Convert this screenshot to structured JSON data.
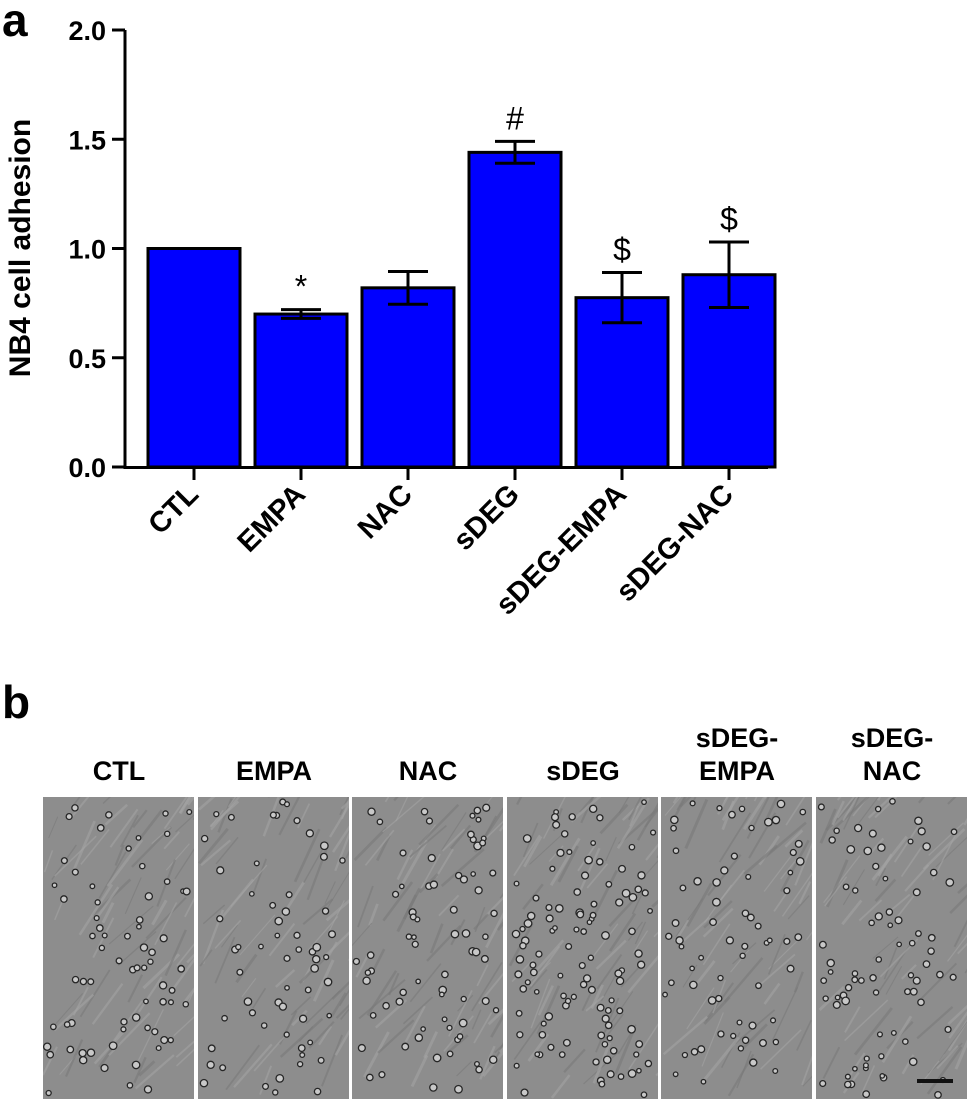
{
  "panel_a_letter": "a",
  "panel_b_letter": "b",
  "chart_data": {
    "type": "bar",
    "title": "",
    "xlabel": "",
    "ylabel": "NB4 cell adhesion",
    "categories": [
      "CTL",
      "EMPA",
      "NAC",
      "sDEG",
      "sDEG-EMPA",
      "sDEG-NAC"
    ],
    "values": [
      1.0,
      0.7,
      0.82,
      1.44,
      0.775,
      0.88
    ],
    "errors": [
      0,
      0.02,
      0.075,
      0.05,
      0.115,
      0.15
    ],
    "annotations": [
      "",
      "*",
      "",
      "#",
      "$",
      "$"
    ],
    "ylim": [
      0,
      2.0
    ],
    "yticks": [
      0.0,
      0.5,
      1.0,
      1.5,
      2.0
    ],
    "ytick_labels": [
      "0.0",
      "0.5",
      "1.0",
      "1.5",
      "2.0"
    ],
    "bar_color": "#0000ff",
    "edge_color": "#000000",
    "grid": false,
    "legend": "none"
  },
  "micrographs": [
    {
      "label_line1": "CTL",
      "label_line2": ""
    },
    {
      "label_line1": "EMPA",
      "label_line2": ""
    },
    {
      "label_line1": "NAC",
      "label_line2": ""
    },
    {
      "label_line1": "sDEG",
      "label_line2": ""
    },
    {
      "label_line1": "sDEG-",
      "label_line2": "EMPA"
    },
    {
      "label_line1": "sDEG-",
      "label_line2": "NAC"
    }
  ]
}
